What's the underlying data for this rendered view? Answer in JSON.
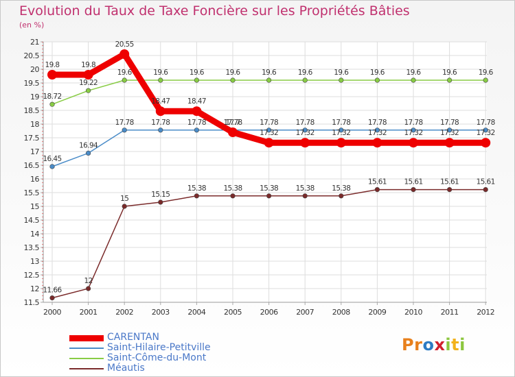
{
  "chart_data": {
    "type": "line",
    "title": "Evolution du Taux de Taxe Foncière sur les Propriétés Bâties",
    "subtitle": "(en %)",
    "x": [
      "2000",
      "2001",
      "2002",
      "2003",
      "2004",
      "2005",
      "2006",
      "2007",
      "2008",
      "2009",
      "2010",
      "2011",
      "2012"
    ],
    "ylim": [
      11.5,
      21
    ],
    "yticks": [
      "11.5",
      "12",
      "12.5",
      "13",
      "13.5",
      "14",
      "14.5",
      "15",
      "15.5",
      "16",
      "16.5",
      "17",
      "17.5",
      "18",
      "18.5",
      "19",
      "19.5",
      "20",
      "20.5",
      "21"
    ],
    "grid": true,
    "legend_position": "bottom-left",
    "series": [
      {
        "name": "CARENTAN",
        "color": "#ee0000",
        "values": [
          19.8,
          19.8,
          20.55,
          18.47,
          18.47,
          17.7,
          17.32,
          17.32,
          17.32,
          17.32,
          17.32,
          17.32,
          17.32
        ],
        "labels": [
          "19.8",
          "19.8",
          "20.55",
          "18.47",
          "18.47",
          "17.7",
          "17.32",
          "17.32",
          "17.32",
          "17.32",
          "17.32",
          "17.32",
          "17.32"
        ]
      },
      {
        "name": "Saint-Hilaire-Petitville",
        "color": "#4a8cc8",
        "values": [
          16.45,
          16.94,
          17.78,
          17.78,
          17.78,
          17.78,
          17.78,
          17.78,
          17.78,
          17.78,
          17.78,
          17.78,
          17.78
        ],
        "labels": [
          "16.45",
          "16.94",
          "17.78",
          "17.78",
          "17.78",
          "17.78",
          "17.78",
          "17.78",
          "17.78",
          "17.78",
          "17.78",
          "17.78",
          "17.78"
        ]
      },
      {
        "name": "Saint-Côme-du-Mont",
        "color": "#88cc44",
        "values": [
          18.72,
          19.22,
          19.6,
          19.6,
          19.6,
          19.6,
          19.6,
          19.6,
          19.6,
          19.6,
          19.6,
          19.6,
          19.6
        ],
        "labels": [
          "18.72",
          "19.22",
          "19.6",
          "19.6",
          "19.6",
          "19.6",
          "19.6",
          "19.6",
          "19.6",
          "19.6",
          "19.6",
          "19.6",
          "19.6"
        ]
      },
      {
        "name": "Méautis",
        "color": "#7a2a2a",
        "values": [
          11.66,
          12,
          15,
          15.15,
          15.38,
          15.38,
          15.38,
          15.38,
          15.38,
          15.61,
          15.61,
          15.61,
          15.61
        ],
        "labels": [
          "11.66",
          "12",
          "15",
          "15.15",
          "15.38",
          "15.38",
          "15.38",
          "15.38",
          "15.38",
          "15.61",
          "15.61",
          "15.61",
          "15.61"
        ]
      }
    ]
  },
  "logo": {
    "letters": [
      "P",
      "r",
      "o",
      "x",
      "i",
      "t",
      "i"
    ]
  }
}
